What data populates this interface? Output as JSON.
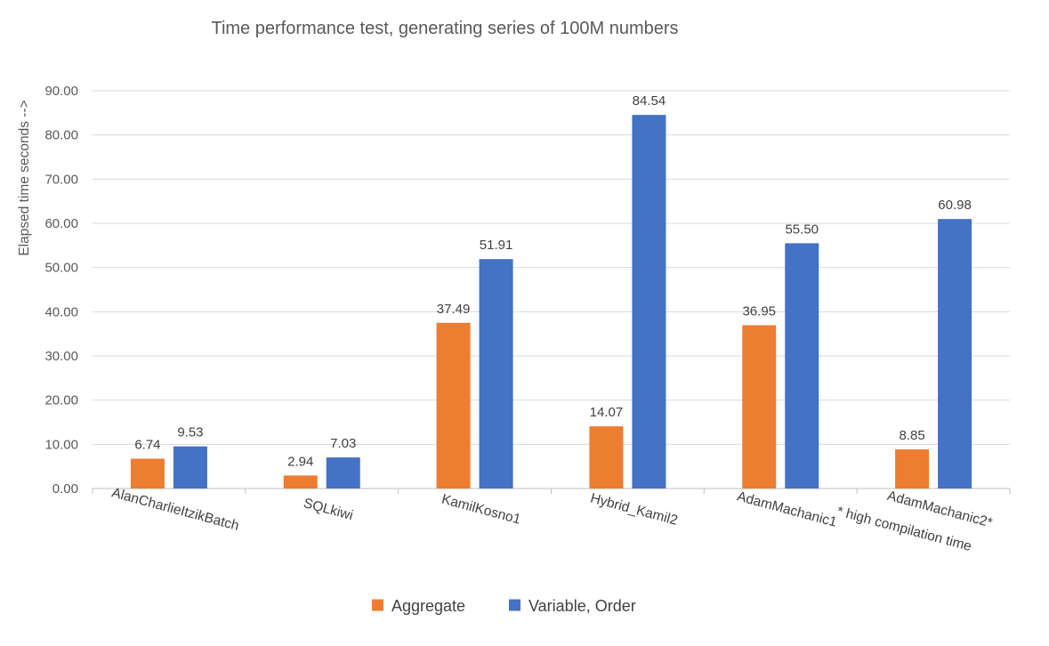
{
  "chart_data": {
    "type": "bar",
    "title": "Time performance test, generating series of 100M numbers",
    "xlabel": "",
    "ylabel": "Elapsed time seconds -->",
    "ylim": [
      0,
      90
    ],
    "ytick_step": 10,
    "ytick_labels": [
      "0.00",
      "10.00",
      "20.00",
      "30.00",
      "40.00",
      "50.00",
      "60.00",
      "70.00",
      "80.00",
      "90.00"
    ],
    "grid": true,
    "legend_position": "bottom",
    "categories": [
      "AlanCharlieItzikBatch",
      "SQLkiwi",
      "KamilKosno1",
      "Hybrid_Kamil2",
      "AdamMachanic1",
      "AdamMachanic2*"
    ],
    "category_note": {
      "category_index": 5,
      "text": "* high compilation time"
    },
    "series": [
      {
        "name": "Aggregate",
        "color": "#ed7d31",
        "values": [
          6.74,
          2.94,
          37.49,
          14.07,
          36.95,
          8.85
        ],
        "labels": [
          "6.74",
          "2.94",
          "37.49",
          "14.07",
          "36.95",
          "8.85"
        ]
      },
      {
        "name": "Variable, Order",
        "color": "#4472c4",
        "values": [
          9.53,
          7.03,
          51.91,
          84.54,
          55.5,
          60.98
        ],
        "labels": [
          "9.53",
          "7.03",
          "51.91",
          "84.54",
          "55.50",
          "60.98"
        ]
      }
    ]
  }
}
